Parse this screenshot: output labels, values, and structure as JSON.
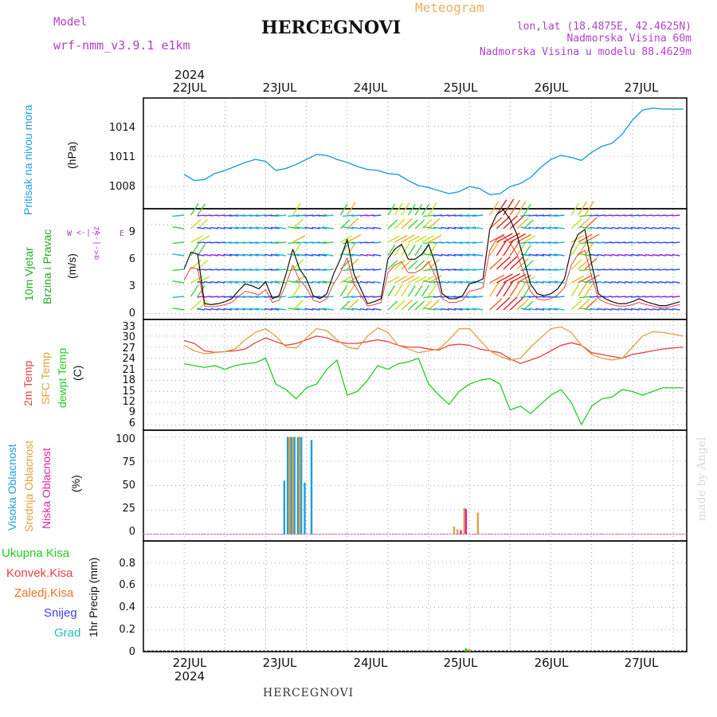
{
  "header": {
    "model_label": "Model",
    "model_name": "wrf-nmm_v3.9.1 e1km",
    "title": "HERCEGNOVI",
    "meteogram_label": "Meteogram",
    "lonlat": "lon,lat (18.4875E, 42.4625N)",
    "elevation": "Nadmorska Visina 60m",
    "model_elevation": "Nadmorska Visina u modelu 88.4629m",
    "footer_title": "HERCEGNOVI",
    "credit": "made by Angel"
  },
  "colors": {
    "model": "#b040c8",
    "meteogram": "#e8b060",
    "pressure": "#1e9ee0",
    "wind_label": "#22aa22",
    "temp2m": "#e84040",
    "sfc": "#e0a040",
    "dewpt": "#22cc22",
    "high_cloud": "#1e9ee0",
    "mid_cloud": "#e0a040",
    "low_cloud": "#e020a0",
    "total_precip": "#22cc22",
    "conv_precip": "#e84040",
    "frz_precip": "#f07020",
    "snow": "#4040e0",
    "hail": "#20c0c0"
  },
  "time_axis": {
    "year": "2024",
    "labels": [
      "22JUL",
      "23JUL",
      "24JUL",
      "25JUL",
      "26JUL",
      "27JUL"
    ]
  },
  "panels": {
    "pressure": {
      "label_line1": "Pritisak na nivou mora",
      "unit": "(hPa)",
      "ticks": [
        "1014",
        "1011",
        "1008"
      ]
    },
    "wind": {
      "label_line1": "10m Vjetar",
      "label_line2": "Brzina i Pravac",
      "unit": "(m/s)",
      "ticks": [
        "9",
        "6",
        "3",
        "0"
      ],
      "compass_ns": "α<-|->z",
      "compass_w": "W",
      "compass_e": "E"
    },
    "temperature": {
      "label_line1": "2m Temp",
      "label_line2": "SFC Temp",
      "label_line3": "dewpt Temp",
      "unit": "(C)",
      "ticks": [
        "33",
        "30",
        "27",
        "24",
        "21",
        "18",
        "15",
        "12",
        "9",
        "6"
      ]
    },
    "cloud": {
      "label_line1": "Visoka Oblacnost",
      "label_line2": "Srednja Oblacnost",
      "label_line3": "Niska Oblacnost",
      "unit": "(%)",
      "ticks": [
        "100",
        "75",
        "50",
        "25",
        "0"
      ]
    },
    "precip": {
      "legend": [
        "Ukupna Kisa",
        "Konvek.Kisa",
        "Zaledj.Kisa",
        "Snijeg",
        "Grad"
      ],
      "label": "1hr Precip (mm)",
      "ticks": [
        "0.8",
        "0.6",
        "0.4",
        "0.2",
        "0"
      ]
    }
  },
  "chart_data": [
    {
      "type": "line",
      "name": "pressure",
      "x_hours": [
        0,
        3,
        6,
        9,
        12,
        15,
        18,
        21,
        24,
        27,
        30,
        33,
        36,
        39,
        42,
        45,
        48,
        51,
        54,
        57,
        60,
        63,
        66,
        69,
        72,
        75,
        78,
        81,
        84,
        87,
        90,
        93,
        96,
        99,
        102,
        105,
        108,
        111,
        114,
        117,
        120,
        123,
        126,
        129,
        132,
        135,
        138,
        141,
        144,
        147
      ],
      "values": [
        1009.2,
        1008.6,
        1008.7,
        1009.3,
        1009.6,
        1010.0,
        1010.4,
        1010.7,
        1010.5,
        1009.6,
        1009.8,
        1010.2,
        1010.7,
        1011.2,
        1011.1,
        1010.7,
        1010.4,
        1010.0,
        1009.7,
        1009.6,
        1009.3,
        1009.2,
        1008.6,
        1008.1,
        1007.9,
        1007.6,
        1007.3,
        1007.5,
        1008.0,
        1007.8,
        1007.2,
        1007.3,
        1008.0,
        1008.3,
        1008.9,
        1009.9,
        1010.7,
        1011.1,
        1010.9,
        1010.6,
        1011.4,
        1012.0,
        1012.3,
        1013.2,
        1014.6,
        1015.6,
        1015.8,
        1015.7,
        1015.7,
        1015.7
      ],
      "ylim": [
        1005.8,
        1016.8
      ]
    },
    {
      "type": "line",
      "name": "wind_speed",
      "x_hours": [
        0,
        2,
        4,
        6,
        8,
        10,
        12,
        14,
        16,
        18,
        20,
        22,
        24,
        26,
        28,
        30,
        32,
        34,
        36,
        38,
        40,
        42,
        44,
        46,
        48,
        50,
        52,
        54,
        56,
        58,
        60,
        62,
        64,
        66,
        68,
        70,
        72,
        74,
        76,
        78,
        80,
        82,
        84,
        86,
        88,
        90,
        92,
        94,
        96,
        98,
        100,
        102,
        104,
        106,
        108,
        110,
        112,
        114,
        116,
        118,
        120,
        122,
        124,
        126,
        128,
        130,
        132,
        134,
        136,
        138,
        140,
        142,
        144,
        146
      ],
      "values": [
        4.5,
        6.2,
        6.0,
        1.0,
        0.9,
        1.0,
        1.2,
        1.5,
        2.3,
        3.0,
        2.8,
        2.5,
        3.2,
        1.5,
        1.8,
        4.0,
        6.5,
        4.5,
        3.5,
        1.8,
        1.5,
        2.0,
        4.0,
        5.5,
        7.5,
        4.0,
        2.5,
        1.0,
        1.2,
        1.5,
        5.5,
        6.5,
        7.0,
        5.5,
        5.5,
        6.0,
        7.0,
        5.0,
        2.0,
        1.5,
        1.5,
        1.8,
        3.0,
        3.2,
        3.5,
        8.5,
        10.0,
        10.5,
        9.5,
        8.0,
        5.5,
        3.0,
        2.0,
        1.8,
        2.0,
        2.5,
        3.5,
        6.5,
        8.0,
        8.5,
        5.0,
        2.0,
        1.5,
        1.2,
        1.0,
        1.0,
        1.2,
        1.5,
        1.2,
        1.0,
        0.8,
        0.8,
        1.0,
        1.2
      ],
      "ylim": [
        -0.6,
        10.6
      ]
    },
    {
      "type": "line",
      "name": "temperature",
      "x_hours": [
        0,
        3,
        6,
        9,
        12,
        15,
        18,
        21,
        24,
        27,
        30,
        33,
        36,
        39,
        42,
        45,
        48,
        51,
        54,
        57,
        60,
        63,
        66,
        69,
        72,
        75,
        78,
        81,
        84,
        87,
        90,
        93,
        96,
        99,
        102,
        105,
        108,
        111,
        114,
        117,
        120,
        123,
        126,
        129,
        132,
        135,
        138,
        141,
        144,
        147
      ],
      "series": [
        {
          "name": "2m Temp",
          "values": [
            28.8,
            28.0,
            26.0,
            25.6,
            25.8,
            26.0,
            26.5,
            28.2,
            29.5,
            28.5,
            27.5,
            28.0,
            29.0,
            30.0,
            29.5,
            28.5,
            28.0,
            28.0,
            28.5,
            29.0,
            28.5,
            27.5,
            27.0,
            27.0,
            26.5,
            26.2,
            27.5,
            27.8,
            27.5,
            26.5,
            26.0,
            25.5,
            23.8,
            22.6,
            23.5,
            24.5,
            26.0,
            27.5,
            28.2,
            27.5,
            25.5,
            25.0,
            24.5,
            24.0,
            25.0,
            25.5,
            26.0,
            26.5,
            26.8,
            27.0
          ]
        },
        {
          "name": "SFC Temp",
          "values": [
            27.5,
            26.0,
            25.2,
            25.5,
            25.8,
            26.5,
            29.0,
            31.0,
            32.0,
            30.0,
            27.0,
            26.8,
            29.5,
            32.0,
            31.5,
            29.0,
            27.0,
            26.5,
            30.0,
            32.2,
            31.0,
            27.5,
            26.5,
            25.5,
            26.0,
            26.5,
            29.0,
            32.0,
            32.0,
            29.0,
            26.0,
            24.5,
            23.5,
            24.0,
            27.0,
            29.5,
            32.0,
            32.5,
            31.0,
            27.5,
            25.0,
            24.0,
            23.5,
            24.0,
            27.0,
            30.0,
            31.2,
            31.0,
            30.5,
            30.0
          ]
        },
        {
          "name": "dewpt Temp",
          "values": [
            22.5,
            22.0,
            21.5,
            22.0,
            21.0,
            22.0,
            22.5,
            22.8,
            24.0,
            17.0,
            15.5,
            13.0,
            16.0,
            17.0,
            21.0,
            23.5,
            14.0,
            15.0,
            18.0,
            22.0,
            21.0,
            22.5,
            23.0,
            24.0,
            17.0,
            14.0,
            11.5,
            15.0,
            17.0,
            18.0,
            18.5,
            17.0,
            10.0,
            11.0,
            9.0,
            11.5,
            14.0,
            15.5,
            12.0,
            6.0,
            11.0,
            13.0,
            13.5,
            15.5,
            15.0,
            14.0,
            15.0,
            16.0,
            16.0,
            16.0
          ]
        }
      ],
      "ylim": [
        4.5,
        34.5
      ]
    },
    {
      "type": "bar",
      "name": "cloud",
      "series": [
        {
          "name": "Visoka Oblacnost",
          "x_hours": [
            29.5,
            30.5,
            31.5,
            32.5,
            33.5,
            34.5,
            35.5,
            37.5
          ],
          "values": [
            55,
            100,
            100,
            100,
            100,
            100,
            53,
            97
          ]
        },
        {
          "name": "Srednja Oblacnost",
          "x_hours": [
            31,
            32,
            34,
            79.5,
            80.5,
            82.5,
            86.5
          ],
          "values": [
            100,
            100,
            100,
            8,
            5,
            27,
            22
          ]
        },
        {
          "name": "Niska Oblacnost",
          "x_hours": [
            81.5,
            83
          ],
          "values": [
            4,
            26
          ]
        }
      ],
      "ylim": [
        -7,
        107
      ]
    },
    {
      "type": "bar",
      "name": "precip",
      "series": [
        {
          "name": "Ukupna Kisa",
          "x_hours": [
            83
          ],
          "values": [
            0.03
          ]
        },
        {
          "name": "Zaledj.Kisa",
          "x_hours": [
            84
          ],
          "values": [
            0.02
          ]
        }
      ],
      "ylim": [
        0,
        1.0
      ]
    }
  ]
}
